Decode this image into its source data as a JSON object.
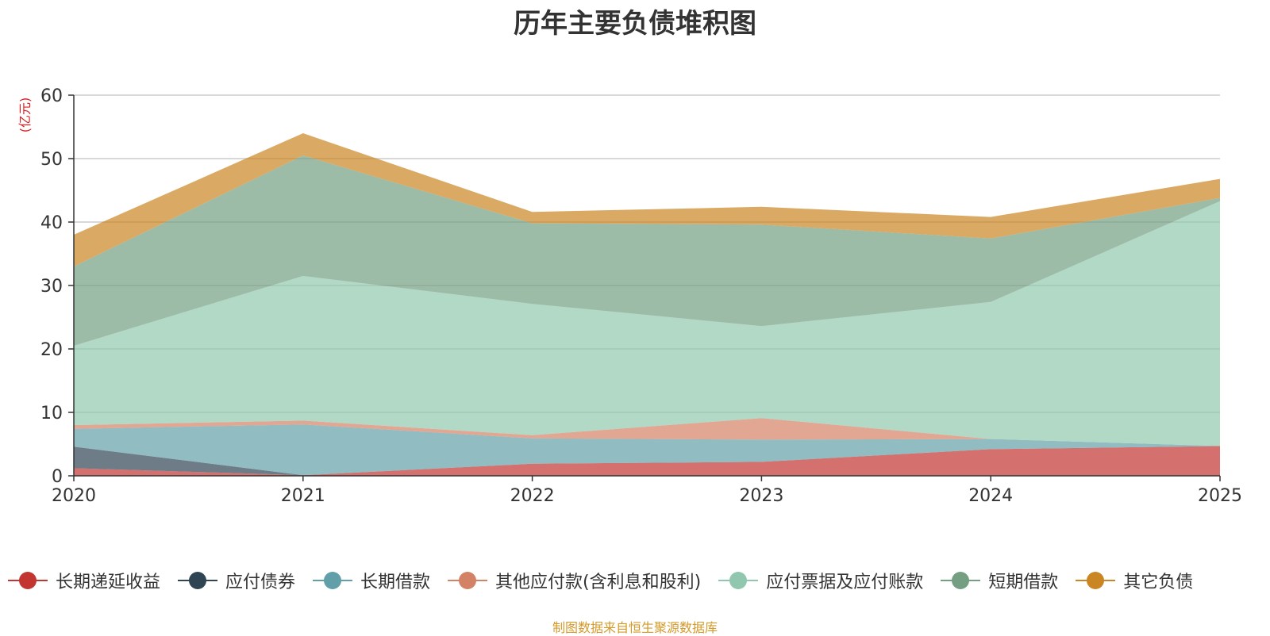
{
  "chart_data": {
    "type": "area",
    "stacked": true,
    "title": "历年主要负债堆积图",
    "ylabel": "(亿元)",
    "xlabel": "",
    "ylim": [
      0,
      60
    ],
    "yticks": [
      0,
      10,
      20,
      30,
      40,
      50,
      60
    ],
    "categories": [
      "2020",
      "2021",
      "2022",
      "2023",
      "2024",
      "2025"
    ],
    "series": [
      {
        "name": "长期递延收益",
        "color": "#c23531",
        "values": [
          1.2,
          0.1,
          1.9,
          2.2,
          4.2,
          4.7
        ]
      },
      {
        "name": "应付债券",
        "color": "#2f4554",
        "values": [
          3.4,
          0.0,
          0.0,
          0.0,
          0.0,
          0.0
        ]
      },
      {
        "name": "长期借款",
        "color": "#61a0a8",
        "values": [
          2.8,
          8.0,
          4.0,
          3.5,
          1.6,
          0.0
        ]
      },
      {
        "name": "其他应付款(含利息和股利)",
        "color": "#d48265",
        "values": [
          0.6,
          0.6,
          0.5,
          3.4,
          0.0,
          0.0
        ]
      },
      {
        "name": "应付票据及应付账款",
        "color": "#91c7ae",
        "values": [
          12.5,
          22.8,
          20.7,
          14.5,
          21.6,
          38.6
        ]
      },
      {
        "name": "短期借款",
        "color": "#749f83",
        "values": [
          12.5,
          19.0,
          12.7,
          16.0,
          10.0,
          0.5
        ]
      },
      {
        "name": "其它负债",
        "color": "#ca8622",
        "values": [
          5.0,
          3.5,
          1.8,
          2.8,
          3.4,
          3.0
        ]
      }
    ]
  },
  "footer": "制图数据来自恒生聚源数据库"
}
